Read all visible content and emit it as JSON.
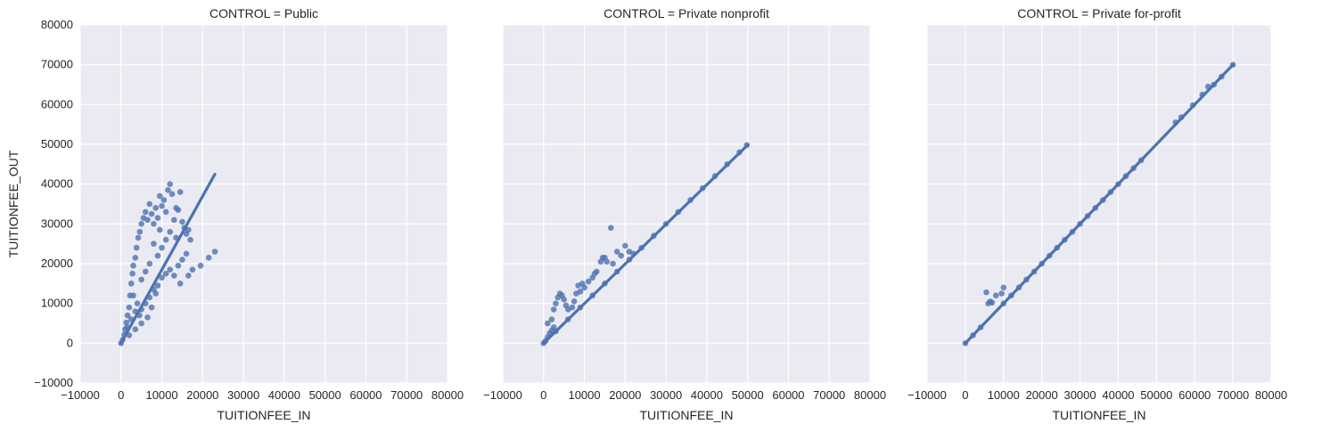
{
  "figure": {
    "facet_variable": "CONTROL",
    "shared_ylabel": "TUITIONFEE_OUT",
    "colors": {
      "marker": "#4c72b0",
      "panel_background": "#eaeaf2",
      "grid": "#ffffff"
    }
  },
  "chart_data": [
    {
      "type": "scatter",
      "title": "CONTROL = Public",
      "xlabel": "TUITIONFEE_IN",
      "ylabel": "TUITIONFEE_OUT",
      "xlim": [
        -10000,
        80000
      ],
      "ylim": [
        -10000,
        80000
      ],
      "xticks": [
        "−10000",
        "0",
        "10000",
        "20000",
        "30000",
        "40000",
        "50000",
        "60000",
        "70000",
        "80000"
      ],
      "yticks": [
        "−10000",
        "0",
        "10000",
        "20000",
        "30000",
        "40000",
        "50000",
        "60000",
        "70000",
        "80000"
      ],
      "grid": true,
      "regression_line": [
        [
          0,
          0
        ],
        [
          23000,
          42500
        ]
      ],
      "points": [
        [
          0,
          0
        ],
        [
          400,
          900
        ],
        [
          800,
          2200
        ],
        [
          1000,
          3500
        ],
        [
          1300,
          5200
        ],
        [
          1600,
          7000
        ],
        [
          2000,
          9000
        ],
        [
          2200,
          12000
        ],
        [
          2500,
          15000
        ],
        [
          2800,
          17500
        ],
        [
          3000,
          19500
        ],
        [
          3500,
          21500
        ],
        [
          3800,
          24000
        ],
        [
          4200,
          26500
        ],
        [
          4600,
          28000
        ],
        [
          5000,
          30000
        ],
        [
          5500,
          31500
        ],
        [
          6000,
          33000
        ],
        [
          6500,
          31000
        ],
        [
          7000,
          35000
        ],
        [
          7500,
          32500
        ],
        [
          8000,
          30000
        ],
        [
          8500,
          34000
        ],
        [
          9000,
          31500
        ],
        [
          9500,
          37000
        ],
        [
          10000,
          34500
        ],
        [
          10500,
          36000
        ],
        [
          11000,
          33000
        ],
        [
          11500,
          38500
        ],
        [
          12000,
          40000
        ],
        [
          12500,
          37500
        ],
        [
          13000,
          31000
        ],
        [
          13500,
          34000
        ],
        [
          14000,
          33500
        ],
        [
          14500,
          38000
        ],
        [
          15000,
          30500
        ],
        [
          15500,
          29000
        ],
        [
          16000,
          27500
        ],
        [
          16500,
          28500
        ],
        [
          17000,
          26000
        ],
        [
          3000,
          12000
        ],
        [
          4000,
          10000
        ],
        [
          5000,
          8500
        ],
        [
          6000,
          10000
        ],
        [
          7000,
          11500
        ],
        [
          8000,
          13500
        ],
        [
          9000,
          14500
        ],
        [
          10000,
          16500
        ],
        [
          11000,
          17500
        ],
        [
          12000,
          18500
        ],
        [
          13000,
          17000
        ],
        [
          14000,
          19500
        ],
        [
          15000,
          21000
        ],
        [
          16000,
          22500
        ],
        [
          14500,
          15000
        ],
        [
          9000,
          22000
        ],
        [
          10000,
          24000
        ],
        [
          11000,
          26000
        ],
        [
          12000,
          28000
        ],
        [
          7000,
          20000
        ],
        [
          6000,
          18000
        ],
        [
          5000,
          16000
        ],
        [
          8000,
          25000
        ],
        [
          9500,
          28500
        ],
        [
          13500,
          26500
        ],
        [
          19500,
          19500
        ],
        [
          21500,
          21500
        ],
        [
          23000,
          23000
        ],
        [
          17500,
          18500
        ],
        [
          16500,
          17000
        ],
        [
          2000,
          2000
        ],
        [
          3500,
          3500
        ],
        [
          5000,
          5000
        ],
        [
          6500,
          6500
        ],
        [
          1500,
          4000
        ],
        [
          2500,
          6000
        ],
        [
          3500,
          8000
        ],
        [
          4500,
          7000
        ],
        [
          7500,
          9000
        ],
        [
          8500,
          12500
        ]
      ]
    },
    {
      "type": "scatter",
      "title": "CONTROL = Private nonprofit",
      "xlabel": "TUITIONFEE_IN",
      "xlim": [
        -10000,
        80000
      ],
      "ylim": [
        -10000,
        80000
      ],
      "xticks": [
        "−10000",
        "0",
        "10000",
        "20000",
        "30000",
        "40000",
        "50000",
        "60000",
        "70000",
        "80000"
      ],
      "grid": true,
      "regression_line": [
        [
          0,
          0
        ],
        [
          50000,
          49800
        ]
      ],
      "points": [
        [
          0,
          0
        ],
        [
          500,
          600
        ],
        [
          1000,
          1500
        ],
        [
          1500,
          2500
        ],
        [
          2000,
          3200
        ],
        [
          2500,
          4000
        ],
        [
          1000,
          5000
        ],
        [
          2000,
          6000
        ],
        [
          2500,
          8500
        ],
        [
          3000,
          10000
        ],
        [
          3500,
          11500
        ],
        [
          4000,
          12500
        ],
        [
          4500,
          12000
        ],
        [
          5000,
          11000
        ],
        [
          5500,
          9500
        ],
        [
          6000,
          8500
        ],
        [
          7000,
          9000
        ],
        [
          7500,
          10500
        ],
        [
          8000,
          12500
        ],
        [
          8500,
          14500
        ],
        [
          9000,
          13000
        ],
        [
          9500,
          15000
        ],
        [
          10000,
          14000
        ],
        [
          11000,
          15500
        ],
        [
          12000,
          16500
        ],
        [
          12500,
          17500
        ],
        [
          13000,
          18000
        ],
        [
          14000,
          20500
        ],
        [
          14500,
          21500
        ],
        [
          15000,
          21500
        ],
        [
          15500,
          20500
        ],
        [
          16500,
          29000
        ],
        [
          17000,
          20000
        ],
        [
          18000,
          23000
        ],
        [
          19000,
          22000
        ],
        [
          20000,
          24500
        ],
        [
          21000,
          23000
        ],
        [
          22000,
          22500
        ],
        [
          3000,
          3000
        ],
        [
          6000,
          6000
        ],
        [
          9000,
          9000
        ],
        [
          12000,
          12000
        ],
        [
          15000,
          15000
        ],
        [
          18000,
          18000
        ],
        [
          21000,
          21000
        ],
        [
          24000,
          24000
        ],
        [
          27000,
          27000
        ],
        [
          30000,
          30000
        ],
        [
          33000,
          33000
        ],
        [
          36000,
          36000
        ],
        [
          39000,
          39000
        ],
        [
          42000,
          42000
        ],
        [
          45000,
          45000
        ],
        [
          48000,
          48000
        ],
        [
          49800,
          49800
        ]
      ]
    },
    {
      "type": "scatter",
      "title": "CONTROL = Private for-profit",
      "xlabel": "TUITIONFEE_IN",
      "xlim": [
        -10000,
        80000
      ],
      "ylim": [
        -10000,
        80000
      ],
      "xticks": [
        "−10000",
        "0",
        "10000",
        "20000",
        "30000",
        "40000",
        "50000",
        "60000",
        "70000",
        "80000"
      ],
      "grid": true,
      "regression_line": [
        [
          0,
          0
        ],
        [
          70000,
          70000
        ]
      ],
      "points": [
        [
          0,
          0
        ],
        [
          2000,
          2000
        ],
        [
          4000,
          4000
        ],
        [
          5500,
          12800
        ],
        [
          6500,
          10500
        ],
        [
          6000,
          10000
        ],
        [
          7000,
          10200
        ],
        [
          8000,
          12000
        ],
        [
          10000,
          14000
        ],
        [
          9500,
          12500
        ],
        [
          10000,
          10000
        ],
        [
          12000,
          12000
        ],
        [
          14000,
          14000
        ],
        [
          16000,
          16000
        ],
        [
          18000,
          18000
        ],
        [
          20000,
          20000
        ],
        [
          22000,
          22000
        ],
        [
          24000,
          24000
        ],
        [
          26000,
          26000
        ],
        [
          28000,
          28000
        ],
        [
          30000,
          30000
        ],
        [
          32000,
          32000
        ],
        [
          34000,
          34000
        ],
        [
          36000,
          36000
        ],
        [
          38000,
          38000
        ],
        [
          40000,
          40000
        ],
        [
          42000,
          42000
        ],
        [
          44000,
          44000
        ],
        [
          46000,
          46000
        ],
        [
          55000,
          55500
        ],
        [
          56500,
          56800
        ],
        [
          59500,
          59800
        ],
        [
          62000,
          62500
        ],
        [
          63500,
          64500
        ],
        [
          65000,
          65000
        ],
        [
          67000,
          67000
        ],
        [
          70000,
          70000
        ]
      ]
    }
  ]
}
